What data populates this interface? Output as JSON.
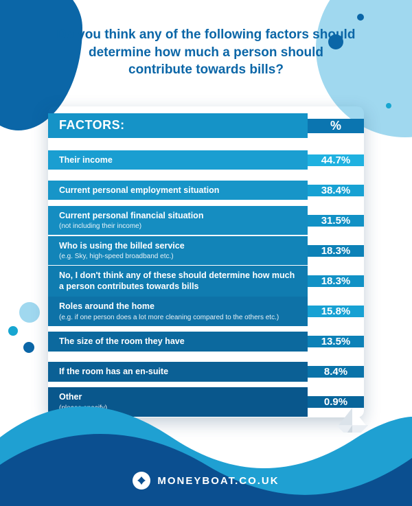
{
  "title": "Do you think any of the following factors should determine how much a person should contribute towards bills?",
  "headers": {
    "factors": "Factors:",
    "pct": "%"
  },
  "colors": {
    "title": "#0b66a7",
    "table_bg": "#1593c7",
    "pct_col": "#0b75b0",
    "header_bg": "#1593c7",
    "header_pct_bg": "#0b75b0",
    "wave_back": "#1fa0d2",
    "wave_front": "#0b4f90",
    "row_stripe_a": "#1a9ed1",
    "row_stripe_b": "#158dc1",
    "row_stripe_c": "#117fb4",
    "row_stripe_d": "#0e72a7",
    "row_stripe_e": "#0c679b",
    "pct_bg_a": "#1fb1e0",
    "pct_bg_b": "#17a1d3",
    "pct_bg_c": "#1191c5",
    "pct_bg_d": "#0c81b7",
    "pct_bg_e": "#0a73a9",
    "pct_bg_f": "#08659b"
  },
  "rows": [
    {
      "label": "Their income",
      "sub": "",
      "value": "44.7%",
      "bg": "#1a9ed1",
      "pbg": "#1fb1e0"
    },
    {
      "label": "Current personal employment situation",
      "sub": "",
      "value": "38.4%",
      "bg": "#1795c8",
      "pbg": "#17a1d3"
    },
    {
      "label": "Current personal financial situation",
      "sub": "(not including their income)",
      "value": "31.5%",
      "bg": "#158dc1",
      "pbg": "#1191c5"
    },
    {
      "label": "Who is using the billed service",
      "sub": "(e.g. Sky, high-speed broadband etc.)",
      "value": "18.3%",
      "bg": "#1284b8",
      "pbg": "#0c81b7"
    },
    {
      "label": "No, I don't think any of these should determine how much a person contributes towards bills",
      "sub": "",
      "value": "18.3%",
      "bg": "#107cb0",
      "pbg": "#1191c5"
    },
    {
      "label": "Roles around the home",
      "sub": "(e.g. if one person does a lot more cleaning compared to the others etc.)",
      "value": "15.8%",
      "bg": "#0e72a7",
      "pbg": "#17a1d3"
    },
    {
      "label": "The size of the room they have",
      "sub": "",
      "value": "13.5%",
      "bg": "#0c699e",
      "pbg": "#0c81b7"
    },
    {
      "label": "If the room has an en-suite",
      "sub": "",
      "value": "8.4%",
      "bg": "#0b6095",
      "pbg": "#0a73a9"
    },
    {
      "label": "Other",
      "sub": "(please specify)",
      "value": "0.9%",
      "bg": "#09578c",
      "pbg": "#08659b"
    }
  ],
  "brand": "moneyboat.co.uk"
}
